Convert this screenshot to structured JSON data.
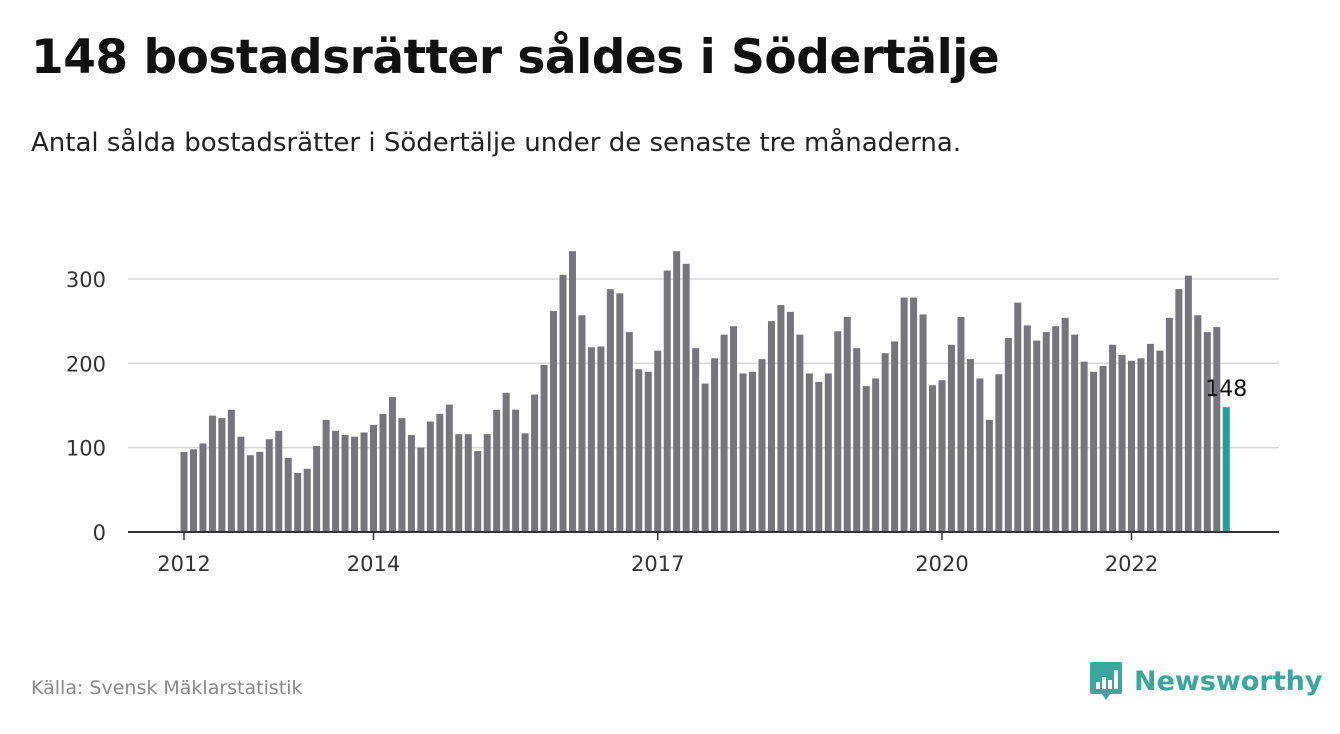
{
  "title": "148 bostadsrätter såldes i Södertälje",
  "subtitle": "Antal sålda bostadsrätter i Södertälje under de senaste tre månaderna.",
  "source": "Källa: Svensk Mäklarstatistik",
  "brand": {
    "name": "Newsworthy",
    "icon": "newsworthy-logo-icon",
    "color": "#3aa69c"
  },
  "colors": {
    "bar": "#76757c",
    "highlight": "#17a399",
    "grid": "#d8d8d8",
    "axis": "#333333"
  },
  "chart_data": {
    "type": "bar",
    "title": "148 bostadsrätter såldes i Södertälje",
    "xlabel": "",
    "ylabel": "",
    "ylim": [
      0,
      350
    ],
    "yticks": [
      0,
      100,
      200,
      300
    ],
    "x_tick_labels": [
      {
        "label": "2012",
        "index": 0
      },
      {
        "label": "2014",
        "index": 20
      },
      {
        "label": "2017",
        "index": 50
      },
      {
        "label": "2020",
        "index": 80
      },
      {
        "label": "2022",
        "index": 100
      }
    ],
    "grid": true,
    "highlight_index": 110,
    "annotation": {
      "text": "148",
      "index": 110
    },
    "values": [
      95,
      98,
      105,
      138,
      135,
      145,
      113,
      91,
      95,
      110,
      120,
      88,
      70,
      75,
      102,
      133,
      120,
      115,
      113,
      118,
      127,
      140,
      160,
      135,
      115,
      100,
      131,
      140,
      151,
      116,
      116,
      96,
      116,
      145,
      165,
      145,
      117,
      163,
      198,
      262,
      305,
      333,
      257,
      219,
      220,
      288,
      283,
      237,
      193,
      190,
      215,
      310,
      333,
      318,
      218,
      176,
      206,
      234,
      244,
      188,
      190,
      205,
      250,
      269,
      261,
      234,
      188,
      178,
      188,
      238,
      255,
      218,
      173,
      182,
      212,
      226,
      278,
      278,
      258,
      174,
      180,
      222,
      255,
      205,
      182,
      133,
      187,
      230,
      272,
      245,
      227,
      237,
      244,
      254,
      234,
      202,
      190,
      197,
      222,
      210,
      203,
      206,
      223,
      215,
      254,
      288,
      304,
      257,
      237,
      243,
      148
    ]
  }
}
